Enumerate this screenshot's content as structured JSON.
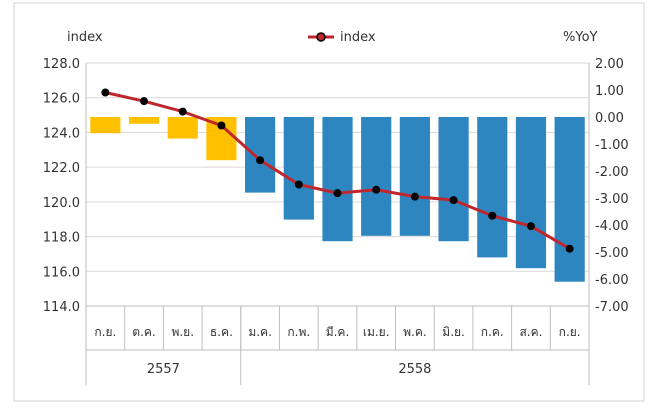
{
  "chart_data": {
    "type": "bar+line",
    "categories": [
      "ก.ย.",
      "ต.ค.",
      "พ.ย.",
      "ธ.ค.",
      "ม.ค.",
      "ก.พ.",
      "มี.ค.",
      "เม.ย.",
      "พ.ค.",
      "มิ.ย.",
      "ก.ค.",
      "ส.ค.",
      "ก.ย."
    ],
    "year_groups": [
      {
        "label": "2557",
        "count": 4
      },
      {
        "label": "2558",
        "count": 9
      }
    ],
    "left_axis": {
      "label": "index",
      "ylim": [
        114.0,
        128.0
      ],
      "ticks": [
        "128.0",
        "126.0",
        "124.0",
        "122.0",
        "120.0",
        "118.0",
        "116.0",
        "114.0"
      ]
    },
    "right_axis": {
      "label": "%YoY",
      "ylim": [
        -7.0,
        2.0
      ],
      "ticks": [
        "2.00",
        "1.00",
        "0.00",
        "-1.00",
        "-2.00",
        "-3.00",
        "-4.00",
        "-5.00",
        "-6.00",
        "-7.00"
      ]
    },
    "bars": {
      "axis": "right",
      "values": [
        -0.6,
        -0.25,
        -0.8,
        -1.6,
        -2.8,
        -3.8,
        -4.6,
        -4.4,
        -4.4,
        -4.6,
        -5.2,
        -5.6,
        -6.1
      ],
      "colors": [
        "#FFC000",
        "#FFC000",
        "#FFC000",
        "#FFC000",
        "#2E86C1",
        "#2E86C1",
        "#2E86C1",
        "#2E86C1",
        "#2E86C1",
        "#2E86C1",
        "#2E86C1",
        "#2E86C1",
        "#2E86C1"
      ]
    },
    "series": [
      {
        "name": "index",
        "axis": "left",
        "values": [
          126.3,
          125.8,
          125.2,
          124.4,
          122.4,
          121.0,
          120.5,
          120.7,
          120.3,
          120.1,
          119.2,
          118.6,
          117.3
        ]
      }
    ],
    "legend": {
      "position": "top-center",
      "entries": [
        "index"
      ]
    },
    "colors": {
      "line": "#C0272D",
      "marker": "#000000",
      "grid": "#D9D9D9",
      "positive_bar": "#FFC000",
      "negative_bar": "#2E86C1"
    },
    "grid": true
  }
}
